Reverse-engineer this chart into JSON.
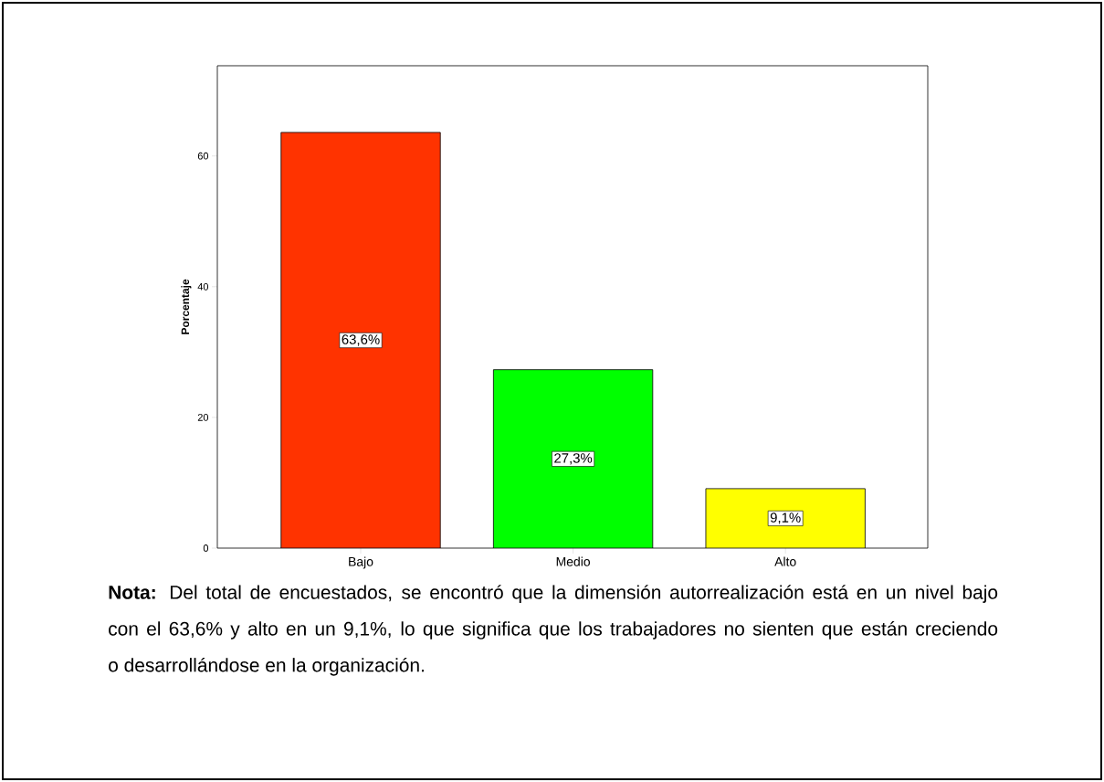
{
  "chart_data": {
    "type": "bar",
    "ylabel": "Porcentaje",
    "categories": [
      "Bajo",
      "Medio",
      "Alto"
    ],
    "values": [
      63.6,
      27.3,
      9.1
    ],
    "colors": [
      "#ff3300",
      "#00ff00",
      "#ffff00"
    ],
    "value_labels": [
      "63,6%",
      "27,3%",
      "9,1%"
    ],
    "ylim": [
      0,
      73.8
    ],
    "yticks": [
      0,
      20,
      40,
      60
    ],
    "grid": false,
    "annotations": [
      "**Nota:** Del total de encuestados, se encontró que la dimensión autorrealización está en un nivel bajo con el 63,6% y alto en un 9,1%, lo que significa que los trabajadores no sienten que están creciendo o desarrollándose en la organización."
    ]
  }
}
